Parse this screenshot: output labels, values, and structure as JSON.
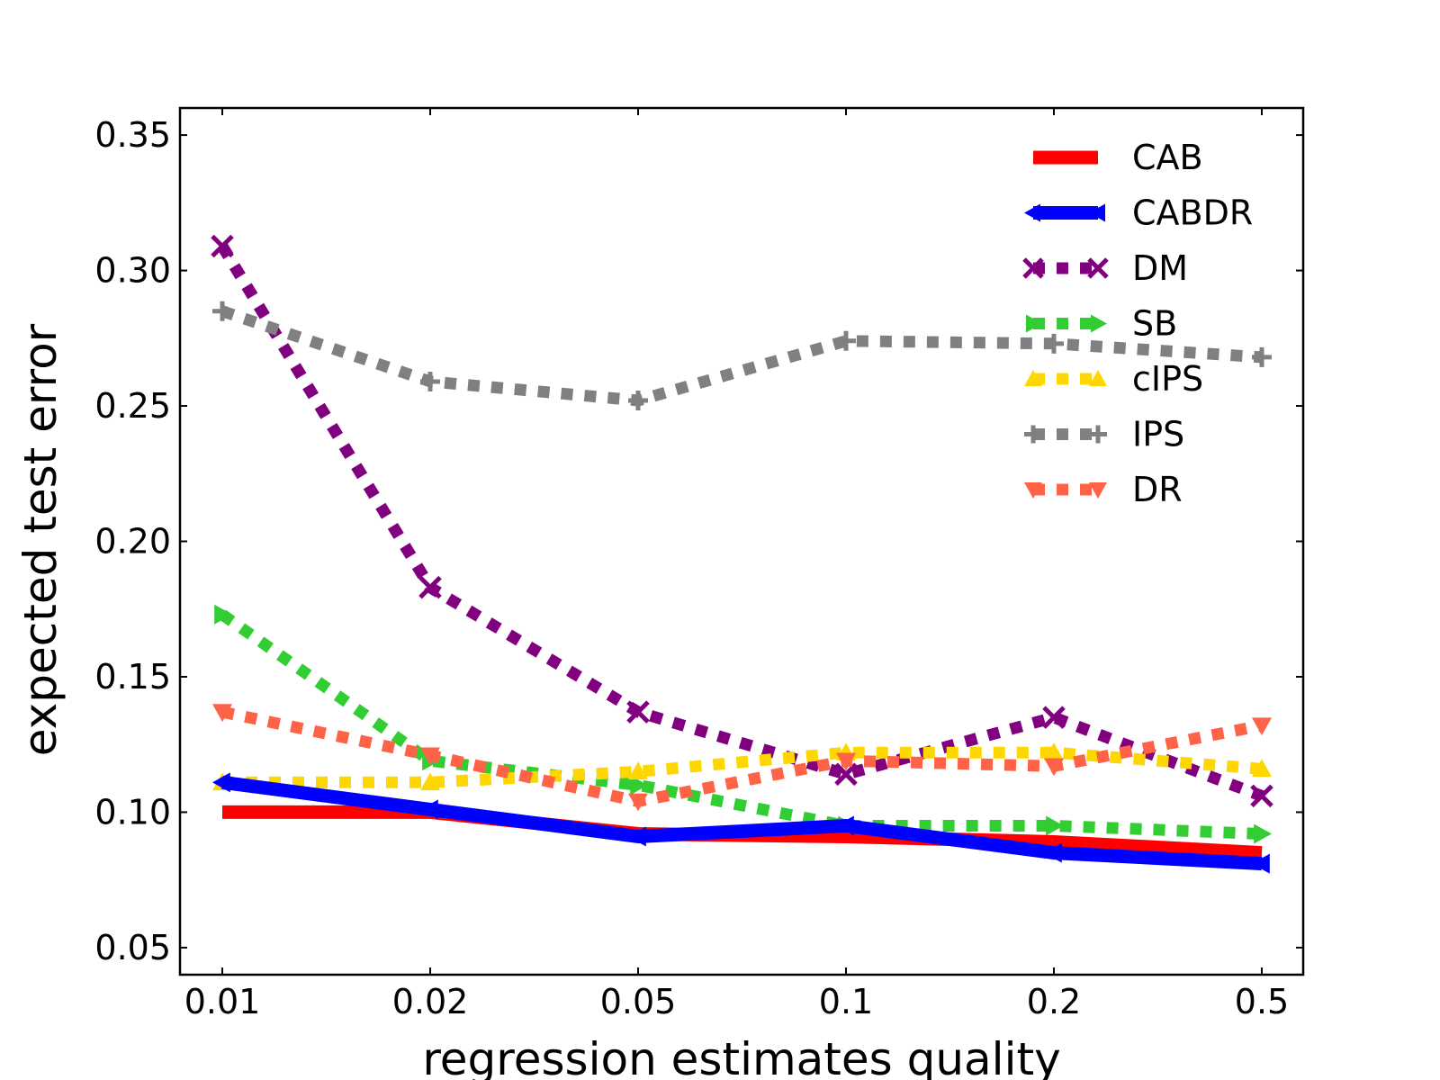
{
  "chart_data": {
    "type": "line",
    "title": "",
    "xlabel": "regression estimates quality",
    "ylabel": "expected test error",
    "categories": [
      "0.01",
      "0.02",
      "0.05",
      "0.1",
      "0.2",
      "0.5"
    ],
    "ylim": [
      0.04,
      0.36
    ],
    "yticks": [
      0.05,
      0.1,
      0.15,
      0.2,
      0.25,
      0.3,
      0.35
    ],
    "ytick_labels": [
      "0.05",
      "0.10",
      "0.15",
      "0.20",
      "0.25",
      "0.30",
      "0.35"
    ],
    "grid": false,
    "legend_position": "top-right",
    "series": [
      {
        "name": "CAB",
        "color": "#ff0000",
        "style": "solid",
        "marker": "none",
        "values": [
          0.1,
          0.1,
          0.092,
          0.091,
          0.089,
          0.085
        ]
      },
      {
        "name": "CABDR",
        "color": "#0000ff",
        "style": "solid",
        "marker": "triangle-left",
        "values": [
          0.111,
          0.101,
          0.091,
          0.095,
          0.085,
          0.081
        ]
      },
      {
        "name": "DM",
        "color": "#800080",
        "style": "dotted",
        "marker": "x",
        "values": [
          0.309,
          0.183,
          0.137,
          0.114,
          0.135,
          0.106
        ]
      },
      {
        "name": "SB",
        "color": "#32cd32",
        "style": "dotted",
        "marker": "triangle-right",
        "values": [
          0.173,
          0.119,
          0.11,
          0.095,
          0.095,
          0.092
        ]
      },
      {
        "name": "cIPS",
        "color": "#ffd700",
        "style": "dotted",
        "marker": "triangle-up",
        "values": [
          0.111,
          0.111,
          0.115,
          0.122,
          0.122,
          0.116
        ]
      },
      {
        "name": "IPS",
        "color": "#808080",
        "style": "dotted",
        "marker": "plus",
        "values": [
          0.285,
          0.259,
          0.252,
          0.274,
          0.273,
          0.268
        ]
      },
      {
        "name": "DR",
        "color": "#ff6347",
        "style": "dotted",
        "marker": "triangle-down",
        "values": [
          0.137,
          0.121,
          0.104,
          0.119,
          0.117,
          0.132
        ]
      }
    ]
  }
}
